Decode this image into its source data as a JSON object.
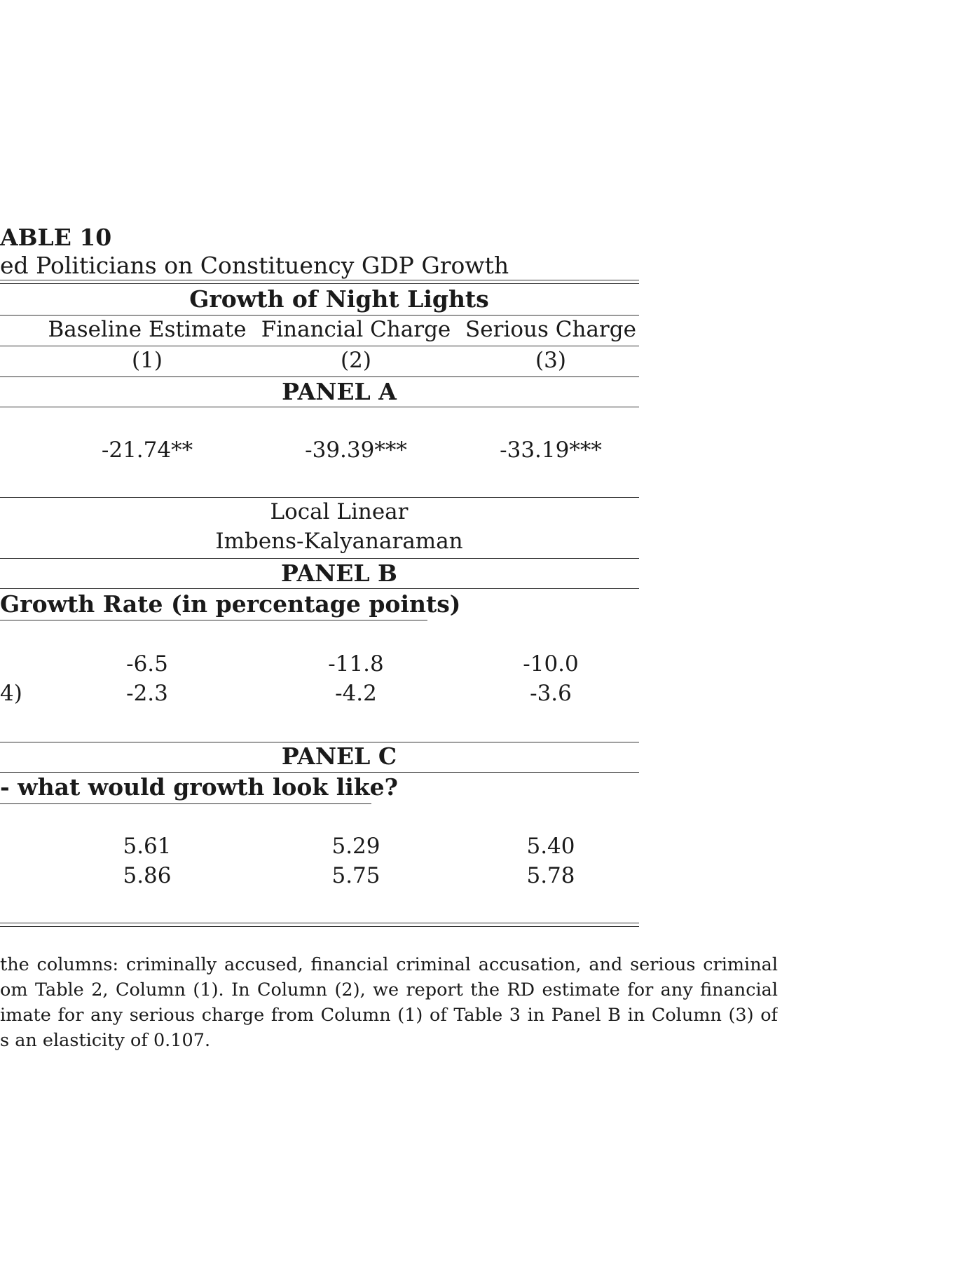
{
  "table_title": "ABLE 10",
  "table_subtitle": "ed Politicians on Constituency GDP Growth",
  "header": {
    "group": "Growth of Night Lights",
    "columns": [
      "Baseline Estimate",
      "Financial Charge",
      "Serious Charge"
    ],
    "numbers": [
      "(1)",
      "(2)",
      "(3)"
    ]
  },
  "panel_a": {
    "label": "PANEL A",
    "values": [
      "-21.74**",
      "-39.39***",
      "-33.19***"
    ],
    "method_line1": "Local Linear",
    "method_line2": "Imbens-Kalyanaraman"
  },
  "panel_b": {
    "label": "PANEL B",
    "subheading": "Growth Rate (in percentage points)",
    "row1": [
      "-6.5",
      "-11.8",
      "-10.0"
    ],
    "row2_stub": "4)",
    "row2": [
      "-2.3",
      "-4.2",
      "-3.6"
    ]
  },
  "panel_c": {
    "label": "PANEL C",
    "subheading": "- what would growth look like?",
    "row1": [
      "5.61",
      "5.29",
      "5.40"
    ],
    "row2": [
      "5.86",
      "5.75",
      "5.78"
    ]
  },
  "notes": [
    "the columns:  criminally accused, financial criminal accusation, and serious criminal",
    "om Table 2, Column (1).  In Column (2), we report the RD estimate for any financial",
    "imate for any serious charge from Column (1) of Table 3 in Panel B in Column (3) of",
    "s an elasticity of 0.107."
  ]
}
